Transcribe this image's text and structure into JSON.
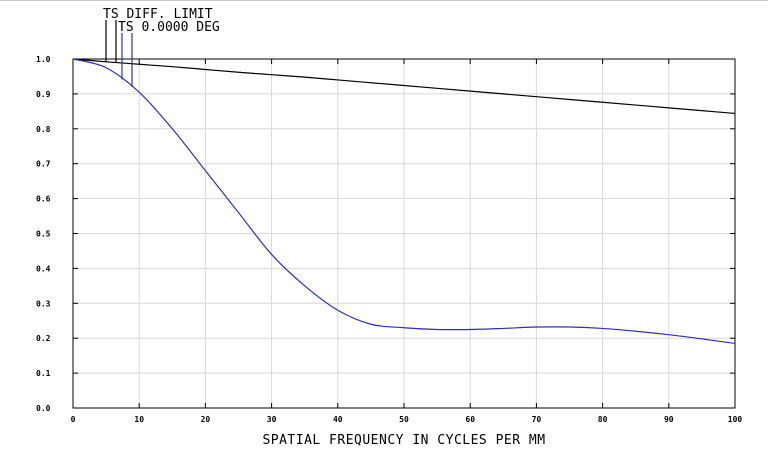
{
  "chart_data": {
    "type": "line",
    "title": "",
    "xlabel": "SPATIAL FREQUENCY IN CYCLES PER MM",
    "ylabel": "",
    "xlim": [
      0,
      100
    ],
    "ylim": [
      0,
      1
    ],
    "grid": true,
    "legend_placement": "top-left",
    "x_ticks": [
      "0",
      "10",
      "20",
      "30",
      "40",
      "50",
      "60",
      "70",
      "80",
      "90",
      "100"
    ],
    "y_ticks": [
      "0.0",
      "0.1",
      "0.2",
      "0.3",
      "0.4",
      "0.5",
      "0.6",
      "0.7",
      "0.8",
      "0.9",
      "1.0"
    ],
    "x": [
      0,
      5,
      10,
      15,
      20,
      25,
      30,
      35,
      40,
      45,
      50,
      55,
      60,
      65,
      70,
      75,
      80,
      85,
      90,
      95,
      100
    ],
    "series": [
      {
        "name": "TS DIFF. LIMIT",
        "color": "#000000",
        "values": [
          1.0,
          0.992,
          0.985,
          0.978,
          0.97,
          0.962,
          0.955,
          0.948,
          0.94,
          0.932,
          0.924,
          0.916,
          0.908,
          0.9,
          0.892,
          0.884,
          0.876,
          0.868,
          0.86,
          0.852,
          0.844
        ]
      },
      {
        "name": "TS 0.0000 DEG",
        "color": "#3030b0",
        "values": [
          1.0,
          0.975,
          0.905,
          0.8,
          0.68,
          0.56,
          0.44,
          0.35,
          0.28,
          0.24,
          0.23,
          0.225,
          0.225,
          0.228,
          0.232,
          0.232,
          0.228,
          0.22,
          0.21,
          0.198,
          0.185
        ]
      }
    ]
  }
}
